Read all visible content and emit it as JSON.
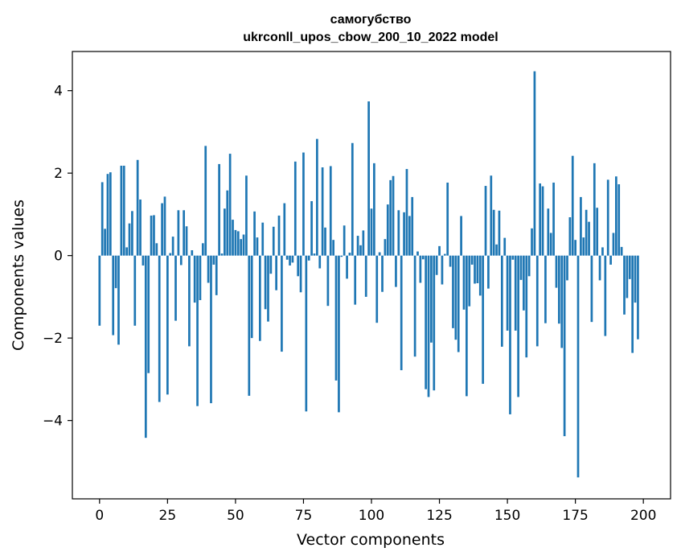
{
  "chart_data": {
    "type": "bar",
    "title": "самогубство",
    "subtitle": "ukrconll_upos_cbow_200_10_2022 model",
    "xlabel": "Vector components",
    "ylabel": "Components values",
    "xlim": [
      -10,
      210
    ],
    "ylim": [
      -5.9,
      4.95
    ],
    "xticks": [
      0,
      25,
      50,
      75,
      100,
      125,
      150,
      175,
      200
    ],
    "yticks": [
      -4,
      -2,
      0,
      2,
      4
    ],
    "ytick_labels": [
      "−4",
      "−2",
      "0",
      "2",
      "4"
    ],
    "bar_color": "#1f77b4",
    "values": [
      -1.7,
      1.78,
      0.65,
      1.98,
      2.02,
      -1.93,
      -0.79,
      -2.16,
      2.18,
      2.18,
      0.2,
      0.78,
      1.08,
      -1.7,
      2.32,
      1.36,
      -0.24,
      -4.42,
      -2.85,
      0.97,
      0.98,
      0.3,
      -3.55,
      1.27,
      1.43,
      -3.37,
      0.06,
      0.46,
      -1.58,
      1.1,
      -0.23,
      1.1,
      0.71,
      -2.2,
      0.13,
      -1.14,
      -3.65,
      -1.08,
      0.3,
      2.66,
      -0.66,
      -3.58,
      -0.22,
      -0.96,
      2.22,
      0.05,
      1.14,
      1.58,
      2.47,
      0.87,
      0.62,
      0.59,
      0.4,
      0.51,
      1.94,
      -3.4,
      -2.0,
      1.07,
      0.44,
      -2.07,
      0.8,
      -1.3,
      -1.6,
      -0.44,
      0.7,
      -0.84,
      0.97,
      -2.33,
      1.27,
      -0.1,
      -0.24,
      -0.17,
      2.28,
      -0.5,
      -0.89,
      2.5,
      -3.78,
      -0.12,
      1.32,
      0.05,
      2.83,
      -0.31,
      2.14,
      0.68,
      -1.22,
      2.17,
      0.38,
      -3.03,
      -3.8,
      -0.03,
      0.73,
      -0.56,
      0.07,
      2.73,
      -1.19,
      0.48,
      0.25,
      0.61,
      -1.0,
      3.74,
      1.14,
      2.24,
      -1.63,
      0.08,
      -0.88,
      0.4,
      1.24,
      1.83,
      1.93,
      -0.76,
      1.1,
      -2.78,
      1.05,
      2.1,
      0.96,
      1.42,
      -2.45,
      0.1,
      -0.66,
      -0.09,
      -3.24,
      -3.43,
      -2.11,
      -3.27,
      -0.47,
      0.23,
      -0.7,
      0.04,
      1.77,
      -0.27,
      -1.76,
      -2.04,
      -2.34,
      0.96,
      -1.31,
      -3.41,
      -1.23,
      -0.22,
      -0.68,
      -0.67,
      -0.97,
      -3.11,
      1.69,
      -0.8,
      1.94,
      1.11,
      0.27,
      1.09,
      -2.21,
      0.43,
      -1.82,
      -3.85,
      -0.1,
      -1.82,
      -3.43,
      -0.59,
      -1.33,
      -2.47,
      -0.5,
      0.66,
      4.47,
      -2.2,
      1.75,
      1.68,
      -1.64,
      1.14,
      0.55,
      1.77,
      -0.78,
      -1.65,
      -2.24,
      -4.38,
      -0.6,
      0.93,
      2.42,
      0.38,
      -5.38,
      1.42,
      0.44,
      1.11,
      0.82,
      -1.61,
      2.24,
      1.16,
      -0.6,
      0.2,
      -1.95,
      1.84,
      -0.22,
      0.55,
      1.92,
      1.73,
      0.21,
      -1.43,
      -1.03,
      -0.57,
      -2.36,
      -1.14,
      -2.03
    ]
  }
}
